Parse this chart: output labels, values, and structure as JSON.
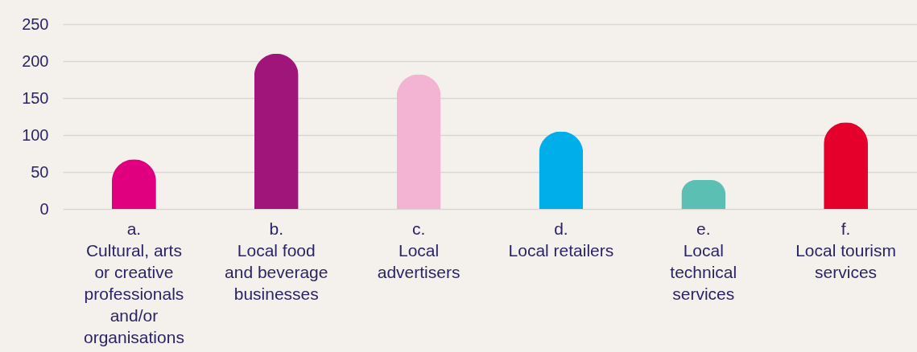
{
  "chart_data": {
    "type": "bar",
    "categories": [
      "a. Cultural, arts or creative professionals and/or organisations",
      "b. Local food and beverage businesses",
      "c. Local advertisers",
      "d. Local retailers",
      "e. Local technical services",
      "f. Local tourism services"
    ],
    "values": [
      67,
      210,
      182,
      105,
      39,
      117
    ],
    "colors": [
      "#e0007f",
      "#a0157a",
      "#f3b3d3",
      "#00aeea",
      "#5bbfb4",
      "#e4002b"
    ],
    "ylim": [
      0,
      250
    ],
    "yticks": [
      0,
      50,
      100,
      150,
      200,
      250
    ],
    "grid": "y"
  }
}
